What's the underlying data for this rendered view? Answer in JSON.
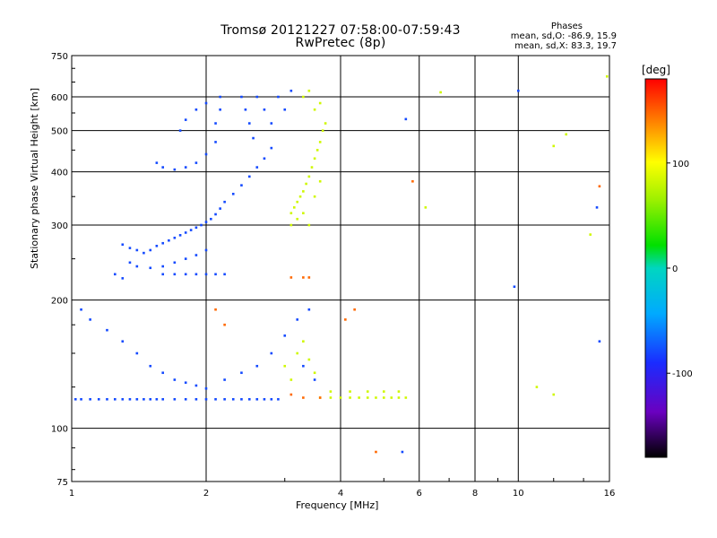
{
  "chart_data": {
    "type": "scatter",
    "title_line1": "Tromsø 20121227 07:58:00-07:59:43",
    "title_line2": "RwPretec (8p)",
    "stats": {
      "title": "Phases",
      "o_mode": "mean, sd,O: -86.9, 15.9",
      "x_mode": "mean, sd,X: 83.3, 19.7"
    },
    "xlabel": "Frequency [MHz]",
    "ylabel": "Stationary phase Virtual Height [km]",
    "x_scale": "log",
    "y_scale": "log",
    "xlim": [
      1,
      16
    ],
    "ylim": [
      75,
      750
    ],
    "x_ticks": [
      1,
      2,
      4,
      6,
      8,
      10,
      16
    ],
    "x_tick_labels": [
      "1",
      "2",
      "4",
      "6",
      "8",
      "10",
      "16"
    ],
    "y_ticks": [
      75,
      100,
      200,
      300,
      400,
      500,
      600,
      750
    ],
    "y_tick_labels": [
      "75",
      "100",
      "200",
      "300",
      "400",
      "500",
      "600",
      "750"
    ],
    "grid": true,
    "colorbar": {
      "label": "[deg]",
      "range": [
        -180,
        180
      ],
      "ticks": [
        -100,
        0,
        100
      ],
      "tick_labels": [
        "-100",
        "0",
        "100"
      ]
    },
    "series": [
      {
        "mode": "O",
        "phase_deg": -87,
        "points": [
          [
            1.02,
            117
          ],
          [
            1.05,
            117
          ],
          [
            1.1,
            117
          ],
          [
            1.15,
            117
          ],
          [
            1.2,
            117
          ],
          [
            1.25,
            117
          ],
          [
            1.3,
            117
          ],
          [
            1.35,
            117
          ],
          [
            1.4,
            117
          ],
          [
            1.45,
            117
          ],
          [
            1.5,
            117
          ],
          [
            1.55,
            117
          ],
          [
            1.6,
            117
          ],
          [
            1.7,
            117
          ],
          [
            1.8,
            117
          ],
          [
            1.9,
            117
          ],
          [
            2.0,
            117
          ],
          [
            2.1,
            117
          ],
          [
            2.2,
            117
          ],
          [
            2.3,
            117
          ],
          [
            2.4,
            117
          ],
          [
            2.5,
            117
          ],
          [
            2.6,
            117
          ],
          [
            2.7,
            117
          ],
          [
            2.8,
            117
          ],
          [
            2.9,
            117
          ],
          [
            1.3,
            270
          ],
          [
            1.35,
            265
          ],
          [
            1.4,
            262
          ],
          [
            1.45,
            258
          ],
          [
            1.5,
            262
          ],
          [
            1.55,
            268
          ],
          [
            1.6,
            272
          ],
          [
            1.65,
            276
          ],
          [
            1.7,
            280
          ],
          [
            1.75,
            284
          ],
          [
            1.8,
            288
          ],
          [
            1.85,
            292
          ],
          [
            1.9,
            296
          ],
          [
            1.95,
            300
          ],
          [
            2.0,
            305
          ],
          [
            2.05,
            310
          ],
          [
            2.1,
            318
          ],
          [
            2.15,
            328
          ],
          [
            2.2,
            340
          ],
          [
            2.3,
            355
          ],
          [
            2.4,
            372
          ],
          [
            2.5,
            390
          ],
          [
            2.6,
            410
          ],
          [
            2.7,
            430
          ],
          [
            2.8,
            455
          ],
          [
            1.35,
            245
          ],
          [
            1.4,
            240
          ],
          [
            1.5,
            238
          ],
          [
            1.6,
            240
          ],
          [
            1.7,
            245
          ],
          [
            1.8,
            250
          ],
          [
            1.9,
            255
          ],
          [
            2.0,
            262
          ],
          [
            1.55,
            420
          ],
          [
            1.6,
            410
          ],
          [
            1.7,
            405
          ],
          [
            1.8,
            410
          ],
          [
            1.9,
            420
          ],
          [
            2.0,
            440
          ],
          [
            2.1,
            470
          ],
          [
            2.1,
            520
          ],
          [
            2.15,
            560
          ],
          [
            2.15,
            600
          ],
          [
            2.0,
            580
          ],
          [
            1.9,
            560
          ],
          [
            1.8,
            530
          ],
          [
            1.75,
            500
          ],
          [
            2.4,
            600
          ],
          [
            2.45,
            560
          ],
          [
            2.5,
            520
          ],
          [
            2.55,
            480
          ],
          [
            2.6,
            600
          ],
          [
            2.7,
            560
          ],
          [
            2.8,
            520
          ],
          [
            2.9,
            600
          ],
          [
            3.0,
            560
          ],
          [
            3.1,
            620
          ],
          [
            1.6,
            230
          ],
          [
            1.7,
            230
          ],
          [
            1.8,
            230
          ],
          [
            1.9,
            230
          ],
          [
            2.0,
            230
          ],
          [
            2.1,
            230
          ],
          [
            2.2,
            230
          ],
          [
            1.05,
            190
          ],
          [
            1.1,
            180
          ],
          [
            1.2,
            170
          ],
          [
            1.3,
            160
          ],
          [
            1.4,
            150
          ],
          [
            1.5,
            140
          ],
          [
            1.6,
            135
          ],
          [
            1.7,
            130
          ],
          [
            1.8,
            128
          ],
          [
            1.9,
            126
          ],
          [
            2.0,
            124
          ],
          [
            2.2,
            130
          ],
          [
            2.4,
            135
          ],
          [
            2.6,
            140
          ],
          [
            2.8,
            150
          ],
          [
            3.0,
            165
          ],
          [
            3.2,
            180
          ],
          [
            3.4,
            190
          ],
          [
            1.25,
            230
          ],
          [
            1.3,
            225
          ],
          [
            3.3,
            140
          ],
          [
            3.5,
            130
          ],
          [
            10.0,
            620
          ],
          [
            9.8,
            215
          ],
          [
            15.0,
            330
          ],
          [
            15.2,
            160
          ],
          [
            5.6,
            532
          ],
          [
            5.5,
            88
          ]
        ]
      },
      {
        "mode": "X",
        "phase_deg": 83,
        "points": [
          [
            3.1,
            320
          ],
          [
            3.15,
            330
          ],
          [
            3.2,
            340
          ],
          [
            3.25,
            350
          ],
          [
            3.3,
            360
          ],
          [
            3.35,
            375
          ],
          [
            3.4,
            390
          ],
          [
            3.45,
            410
          ],
          [
            3.5,
            430
          ],
          [
            3.55,
            450
          ],
          [
            3.6,
            470
          ],
          [
            3.65,
            500
          ],
          [
            3.7,
            520
          ],
          [
            3.1,
            300
          ],
          [
            3.2,
            310
          ],
          [
            3.3,
            320
          ],
          [
            3.4,
            300
          ],
          [
            3.5,
            350
          ],
          [
            3.6,
            380
          ],
          [
            3.3,
            600
          ],
          [
            3.4,
            620
          ],
          [
            3.5,
            560
          ],
          [
            3.6,
            580
          ],
          [
            3.6,
            118
          ],
          [
            3.8,
            118
          ],
          [
            4.0,
            118
          ],
          [
            4.2,
            118
          ],
          [
            4.4,
            118
          ],
          [
            4.6,
            118
          ],
          [
            4.8,
            118
          ],
          [
            5.0,
            118
          ],
          [
            5.2,
            118
          ],
          [
            5.4,
            118
          ],
          [
            5.6,
            118
          ],
          [
            3.8,
            122
          ],
          [
            4.2,
            122
          ],
          [
            4.6,
            122
          ],
          [
            5.0,
            122
          ],
          [
            5.4,
            122
          ],
          [
            3.2,
            150
          ],
          [
            3.3,
            160
          ],
          [
            3.4,
            145
          ],
          [
            3.5,
            135
          ],
          [
            3.0,
            140
          ],
          [
            3.1,
            130
          ],
          [
            12.0,
            460
          ],
          [
            12.8,
            490
          ],
          [
            14.5,
            285
          ],
          [
            15.8,
            670
          ],
          [
            6.2,
            330
          ],
          [
            6.7,
            615
          ],
          [
            12.0,
            120
          ],
          [
            11.0,
            125
          ]
        ]
      },
      {
        "mode": "mixed",
        "phase_deg": 150,
        "points": [
          [
            3.1,
            226
          ],
          [
            3.3,
            226
          ],
          [
            3.4,
            226
          ],
          [
            2.2,
            175
          ],
          [
            2.1,
            190
          ],
          [
            3.1,
            120
          ],
          [
            3.3,
            118
          ],
          [
            3.6,
            118
          ],
          [
            4.8,
            88
          ],
          [
            4.1,
            180
          ],
          [
            4.3,
            190
          ],
          [
            5.8,
            380
          ],
          [
            15.2,
            370
          ]
        ]
      }
    ]
  }
}
